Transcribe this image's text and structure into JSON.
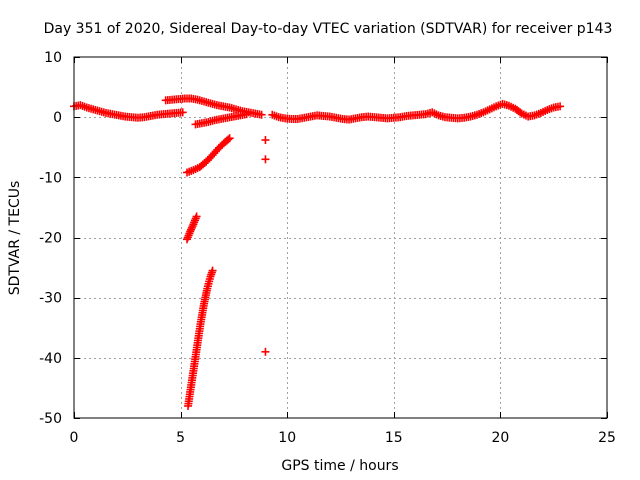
{
  "chart_data": {
    "type": "scatter",
    "title": "Day 351 of 2020, Sidereal Day-to-day VTEC variation (SDTVAR) for receiver p143",
    "xlabel": "GPS time / hours",
    "ylabel": "SDTVAR / TECUs",
    "xlim": [
      0,
      25
    ],
    "ylim": [
      -50,
      10
    ],
    "x_ticks": [
      0,
      5,
      10,
      15,
      20,
      25
    ],
    "y_ticks": [
      10,
      0,
      -10,
      -20,
      -30,
      -40,
      -50
    ],
    "x_tick_labels": [
      "0",
      "5",
      "10",
      "15",
      "20",
      "25"
    ],
    "y_tick_labels": [
      "10",
      "0",
      "-10",
      "-20",
      "-30",
      "-40",
      "-50"
    ],
    "grid": true,
    "marker": "+",
    "series": [
      {
        "name": "SDTVAR",
        "color": "#ff0000",
        "points": [
          [
            0.0,
            1.8
          ],
          [
            0.3,
            2.0
          ],
          [
            0.6,
            1.6
          ],
          [
            0.9,
            1.3
          ],
          [
            1.2,
            1.0
          ],
          [
            1.5,
            0.7
          ],
          [
            1.8,
            0.5
          ],
          [
            2.1,
            0.3
          ],
          [
            2.4,
            0.1
          ],
          [
            2.7,
            0.0
          ],
          [
            3.0,
            -0.1
          ],
          [
            3.3,
            0.0
          ],
          [
            3.6,
            0.2
          ],
          [
            3.9,
            0.4
          ],
          [
            4.2,
            0.5
          ],
          [
            4.5,
            0.6
          ],
          [
            4.8,
            0.7
          ],
          [
            5.1,
            0.8
          ],
          [
            4.3,
            2.8
          ],
          [
            4.6,
            2.9
          ],
          [
            4.9,
            3.0
          ],
          [
            5.2,
            3.1
          ],
          [
            5.5,
            3.1
          ],
          [
            5.8,
            2.9
          ],
          [
            6.1,
            2.6
          ],
          [
            6.4,
            2.3
          ],
          [
            6.7,
            2.0
          ],
          [
            7.0,
            1.8
          ],
          [
            7.3,
            1.6
          ],
          [
            7.6,
            1.3
          ],
          [
            7.9,
            1.0
          ],
          [
            8.2,
            0.8
          ],
          [
            8.5,
            0.6
          ],
          [
            8.8,
            0.4
          ],
          [
            5.7,
            -1.2
          ],
          [
            6.0,
            -1.0
          ],
          [
            6.3,
            -0.8
          ],
          [
            6.6,
            -0.5
          ],
          [
            6.9,
            -0.3
          ],
          [
            7.2,
            -0.1
          ],
          [
            7.5,
            0.1
          ],
          [
            7.8,
            0.3
          ],
          [
            8.1,
            0.5
          ],
          [
            5.3,
            -9.2
          ],
          [
            5.6,
            -8.8
          ],
          [
            5.9,
            -8.3
          ],
          [
            6.2,
            -7.4
          ],
          [
            6.5,
            -6.3
          ],
          [
            6.8,
            -5.1
          ],
          [
            7.1,
            -4.1
          ],
          [
            7.3,
            -3.5
          ],
          [
            5.3,
            -20.3
          ],
          [
            5.45,
            -19.0
          ],
          [
            5.6,
            -17.8
          ],
          [
            5.75,
            -16.5
          ],
          [
            5.35,
            -48.0
          ],
          [
            5.5,
            -44.5
          ],
          [
            5.65,
            -41.0
          ],
          [
            5.8,
            -37.5
          ],
          [
            5.95,
            -34.0
          ],
          [
            6.1,
            -31.0
          ],
          [
            6.25,
            -28.5
          ],
          [
            6.4,
            -26.5
          ],
          [
            6.5,
            -25.5
          ],
          [
            8.98,
            -3.8
          ],
          [
            8.98,
            -7.0
          ],
          [
            8.98,
            -39.0
          ],
          [
            9.3,
            0.4
          ],
          [
            9.6,
            0.0
          ],
          [
            9.9,
            -0.2
          ],
          [
            10.2,
            -0.3
          ],
          [
            10.5,
            -0.3
          ],
          [
            10.8,
            -0.1
          ],
          [
            11.1,
            0.1
          ],
          [
            11.4,
            0.3
          ],
          [
            11.7,
            0.2
          ],
          [
            12.0,
            0.1
          ],
          [
            12.3,
            -0.1
          ],
          [
            12.6,
            -0.3
          ],
          [
            12.9,
            -0.4
          ],
          [
            13.2,
            -0.2
          ],
          [
            13.5,
            0.0
          ],
          [
            13.8,
            0.1
          ],
          [
            14.1,
            0.0
          ],
          [
            14.4,
            -0.1
          ],
          [
            14.7,
            -0.2
          ],
          [
            15.0,
            -0.1
          ],
          [
            15.3,
            0.0
          ],
          [
            15.6,
            0.2
          ],
          [
            15.9,
            0.3
          ],
          [
            16.2,
            0.4
          ],
          [
            16.5,
            0.5
          ],
          [
            16.8,
            0.8
          ],
          [
            17.1,
            0.3
          ],
          [
            17.4,
            0.0
          ],
          [
            17.7,
            -0.1
          ],
          [
            18.0,
            -0.2
          ],
          [
            18.3,
            -0.1
          ],
          [
            18.6,
            0.1
          ],
          [
            18.9,
            0.4
          ],
          [
            19.2,
            0.8
          ],
          [
            19.5,
            1.3
          ],
          [
            19.8,
            1.8
          ],
          [
            20.1,
            2.2
          ],
          [
            20.4,
            1.9
          ],
          [
            20.7,
            1.4
          ],
          [
            21.0,
            0.6
          ],
          [
            21.3,
            0.1
          ],
          [
            21.6,
            0.3
          ],
          [
            21.9,
            0.7
          ],
          [
            22.2,
            1.2
          ],
          [
            22.5,
            1.6
          ],
          [
            22.8,
            1.8
          ]
        ]
      }
    ]
  }
}
